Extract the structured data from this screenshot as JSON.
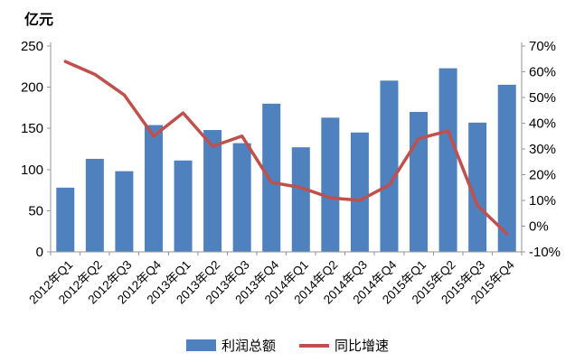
{
  "chart_data": {
    "type": "combo-bar-line",
    "categories": [
      "2012年Q1",
      "2012年Q2",
      "2012年Q3",
      "2012年Q4",
      "2013年Q1",
      "2013年Q2",
      "2013年Q3",
      "2013年Q4",
      "2014年Q1",
      "2014年Q2",
      "2014年Q3",
      "2014年Q4",
      "2015年Q1",
      "2015年Q2",
      "2015年Q3",
      "2015年Q4"
    ],
    "series": [
      {
        "name": "利润总额",
        "type": "bar",
        "axis": "left",
        "color": "#4E81BD",
        "values": [
          78,
          113,
          98,
          154,
          111,
          148,
          132,
          180,
          127,
          163,
          145,
          208,
          170,
          223,
          157,
          203
        ]
      },
      {
        "name": "同比增速",
        "type": "line",
        "axis": "right",
        "color": "#C0504D",
        "unit": "%",
        "values": [
          64,
          59,
          51,
          35,
          44,
          31,
          35,
          17,
          15,
          11,
          10,
          16,
          34,
          37,
          8,
          -3
        ]
      }
    ],
    "left_axis": {
      "title": "亿元",
      "min": 0,
      "max": 250,
      "step": 50,
      "tick_labels": [
        "0",
        "50",
        "100",
        "150",
        "200",
        "250"
      ]
    },
    "right_axis": {
      "min": -10,
      "max": 70,
      "step": 10,
      "tick_labels": [
        "-10%",
        "0%",
        "10%",
        "20%",
        "30%",
        "40%",
        "50%",
        "60%",
        "70%"
      ]
    },
    "legend": {
      "position": "bottom",
      "entries": [
        "利润总额",
        "同比增速"
      ]
    },
    "grid": false,
    "axis_color": "#969696",
    "text_color": "#000000"
  }
}
